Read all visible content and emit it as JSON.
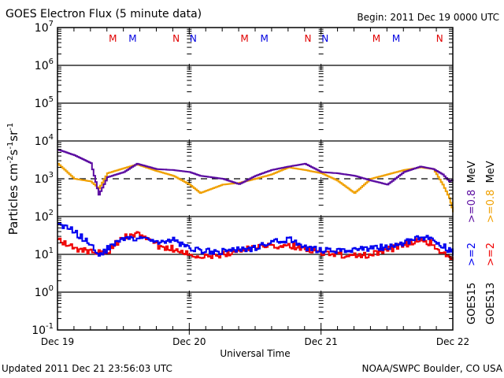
{
  "chart_data": {
    "type": "line",
    "title": "GOES Electron Flux (5 minute data)",
    "begin_label": "Begin: 2011 Dec 19 0000 UTC",
    "xlabel": "Universal Time",
    "ylabel": "Particles cm⁻²s⁻¹sr⁻¹",
    "y_scale": "log",
    "ylim": [
      0.1,
      10000000
    ],
    "y_ticks": [
      {
        "value": 10000000,
        "base": "10",
        "exp": "7"
      },
      {
        "value": 1000000,
        "base": "10",
        "exp": "6"
      },
      {
        "value": 100000,
        "base": "10",
        "exp": "5"
      },
      {
        "value": 10000,
        "base": "10",
        "exp": "4"
      },
      {
        "value": 1000,
        "base": "10",
        "exp": "3"
      },
      {
        "value": 100,
        "base": "10",
        "exp": "2"
      },
      {
        "value": 10,
        "base": "10",
        "exp": "1"
      },
      {
        "value": 1,
        "base": "10",
        "exp": "0"
      },
      {
        "value": 0.1,
        "base": "10",
        "exp": "-1"
      }
    ],
    "xlim_days": [
      0,
      3
    ],
    "x_ticks": [
      {
        "day": 0,
        "label": "Dec 19"
      },
      {
        "day": 1,
        "label": "Dec 20"
      },
      {
        "day": 2,
        "label": "Dec 21"
      },
      {
        "day": 3,
        "label": "Dec 22"
      }
    ],
    "threshold_line": {
      "value": 1000,
      "style": "dashed"
    },
    "grid": "horizontal lines at each decade",
    "local_time_markers": [
      {
        "day": 0.42,
        "letter": "M",
        "color": "#e00000"
      },
      {
        "day": 0.57,
        "letter": "M",
        "color": "#0000e0"
      },
      {
        "day": 0.9,
        "letter": "N",
        "color": "#e00000"
      },
      {
        "day": 1.03,
        "letter": "N",
        "color": "#0000e0"
      },
      {
        "day": 1.42,
        "letter": "M",
        "color": "#e00000"
      },
      {
        "day": 1.57,
        "letter": "M",
        "color": "#0000e0"
      },
      {
        "day": 1.9,
        "letter": "N",
        "color": "#e00000"
      },
      {
        "day": 2.03,
        "letter": "N",
        "color": "#0000e0"
      },
      {
        "day": 2.42,
        "letter": "M",
        "color": "#e00000"
      },
      {
        "day": 2.57,
        "letter": "M",
        "color": "#0000e0"
      },
      {
        "day": 2.9,
        "letter": "N",
        "color": "#e00000"
      },
      {
        "day": 3.03,
        "letter": "N",
        "color": "#0000e0"
      }
    ],
    "x_days": [
      0,
      0.125,
      0.25,
      0.31,
      0.375,
      0.5,
      0.6,
      0.75,
      0.875,
      1.0,
      1.08,
      1.25,
      1.375,
      1.5,
      1.62,
      1.75,
      1.875,
      2.0,
      2.12,
      2.25,
      2.375,
      2.5,
      2.625,
      2.75,
      2.85,
      2.92,
      2.97,
      3.0
    ],
    "series": [
      {
        "name": "GOES15 >=0.8 MeV",
        "satellite": "GOES15",
        "energy": ">=0.8 MeV",
        "color": "#5a0aa0",
        "values": [
          5900,
          4200,
          2600,
          380,
          1100,
          1500,
          2500,
          1800,
          1700,
          1500,
          1200,
          1000,
          720,
          1200,
          1700,
          2100,
          2500,
          1500,
          1400,
          1200,
          900,
          700,
          1500,
          2100,
          1800,
          1300,
          850,
          950
        ]
      },
      {
        "name": "GOES13 >=0.8 MeV",
        "satellite": "GOES13",
        "energy": ">=0.8 MeV",
        "color": "#f0a000",
        "values": [
          2500,
          1000,
          850,
          550,
          1400,
          1900,
          2400,
          1600,
          1200,
          700,
          420,
          700,
          780,
          1000,
          1300,
          2000,
          1700,
          1400,
          900,
          420,
          1000,
          1300,
          1700,
          2000,
          1800,
          700,
          310,
          130
        ]
      },
      {
        "name": "GOES15 >=2 MeV",
        "satellite": "GOES15",
        "energy": ">=2 MeV",
        "color": "#0000f0",
        "values": [
          65,
          40,
          17,
          10,
          14,
          27,
          26,
          20,
          24,
          15,
          12,
          12,
          13,
          15,
          20,
          25,
          15,
          13,
          12,
          13,
          14,
          16,
          20,
          27,
          25,
          17,
          13,
          11
        ]
      },
      {
        "name": "GOES13 >=2 MeV",
        "satellite": "GOES13",
        "energy": ">=2 MeV",
        "color": "#f00000",
        "values": [
          25,
          14,
          12,
          11,
          12,
          30,
          33,
          17,
          14,
          11,
          9,
          10,
          13,
          15,
          17,
          17,
          15,
          11,
          10,
          9,
          10,
          13,
          18,
          26,
          18,
          10,
          8,
          7
        ]
      }
    ],
    "legend": {
      "placement": "right, rotated vertical",
      "columns": [
        {
          "satellite": "GOES15",
          "items": [
            {
              "text": ">=2",
              "color": "#0000f0"
            },
            {
              "text": ">=0.8",
              "color": "#5a0aa0"
            }
          ],
          "unit": "MeV"
        },
        {
          "satellite": "GOES13",
          "items": [
            {
              "text": ">=2",
              "color": "#f00000"
            },
            {
              "text": ">=0.8",
              "color": "#f0a000"
            }
          ],
          "unit": "MeV"
        }
      ]
    },
    "footer_left": "Updated 2011 Dec 21 23:56:03 UTC",
    "footer_right": "NOAA/SWPC Boulder, CO USA"
  }
}
